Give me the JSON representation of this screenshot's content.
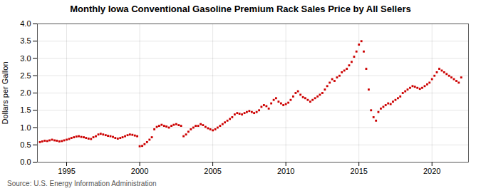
{
  "chart_data": {
    "type": "scatter",
    "title": "Monthly Iowa Conventional Gasoline Premium Rack Sales Price by All Sellers",
    "ylabel": "Dollars per Gallon",
    "source": "Source: U.S. Energy Information Administration",
    "color": "#cc0000",
    "marker": "square",
    "grid": true,
    "xlim": [
      1993.0,
      2022.5
    ],
    "ylim": [
      0.0,
      4.0
    ],
    "xticks": [
      1995,
      2000,
      2005,
      2010,
      2015,
      2020
    ],
    "yticks": [
      {
        "value": 0.0,
        "label": "0.0"
      },
      0.5,
      {
        "value": 1.0,
        "label": "1.0"
      },
      1.5,
      {
        "value": 2.0,
        "label": "2.0"
      },
      2.5,
      {
        "value": 3.0,
        "label": "3.0"
      },
      3.5,
      {
        "value": 4.0,
        "label": "4.0"
      }
    ],
    "x": [
      1993.17,
      1993.33,
      1993.5,
      1993.67,
      1993.83,
      1994.0,
      1994.17,
      1994.33,
      1994.5,
      1994.67,
      1994.83,
      1995.0,
      1995.17,
      1995.33,
      1995.5,
      1995.67,
      1995.83,
      1996.0,
      1996.17,
      1996.33,
      1996.5,
      1996.67,
      1996.83,
      1997.0,
      1997.17,
      1997.33,
      1997.5,
      1997.67,
      1997.83,
      1998.0,
      1998.17,
      1998.33,
      1998.5,
      1998.67,
      1998.83,
      1999.0,
      1999.17,
      1999.33,
      1999.5,
      1999.67,
      1999.83,
      2000.0,
      2000.17,
      2000.33,
      2000.5,
      2000.67,
      2000.83,
      2001.0,
      2001.17,
      2001.33,
      2001.5,
      2001.67,
      2001.83,
      2002.0,
      2002.17,
      2002.33,
      2002.5,
      2002.67,
      2002.83,
      2003.0,
      2003.17,
      2003.33,
      2003.5,
      2003.67,
      2003.83,
      2004.0,
      2004.17,
      2004.33,
      2004.5,
      2004.67,
      2004.83,
      2005.0,
      2005.17,
      2005.33,
      2005.5,
      2005.67,
      2005.83,
      2006.0,
      2006.17,
      2006.33,
      2006.5,
      2006.67,
      2006.83,
      2007.0,
      2007.17,
      2007.33,
      2007.5,
      2007.67,
      2007.83,
      2008.0,
      2008.17,
      2008.33,
      2008.5,
      2008.67,
      2008.83,
      2009.0,
      2009.17,
      2009.33,
      2009.5,
      2009.67,
      2009.83,
      2010.0,
      2010.17,
      2010.33,
      2010.5,
      2010.67,
      2010.83,
      2011.0,
      2011.17,
      2011.33,
      2011.5,
      2011.67,
      2011.83,
      2012.0,
      2012.17,
      2012.33,
      2012.5,
      2012.67,
      2012.83,
      2013.0,
      2013.17,
      2013.33,
      2013.5,
      2013.67,
      2013.83,
      2014.0,
      2014.17,
      2014.33,
      2014.5,
      2014.67,
      2014.83,
      2015.0,
      2015.17,
      2015.33,
      2015.5,
      2015.67,
      2015.83,
      2016.0,
      2016.17,
      2016.33,
      2016.5,
      2016.67,
      2016.83,
      2017.0,
      2017.17,
      2017.33,
      2017.5,
      2017.67,
      2017.83,
      2018.0,
      2018.17,
      2018.33,
      2018.5,
      2018.67,
      2018.83,
      2019.0,
      2019.17,
      2019.33,
      2019.5,
      2019.67,
      2019.83,
      2020.0,
      2020.17,
      2020.33,
      2020.5,
      2020.67,
      2020.83,
      2021.0,
      2021.17,
      2021.33,
      2021.5,
      2021.67,
      2021.83,
      2022.0
    ],
    "values": [
      0.58,
      0.6,
      0.62,
      0.61,
      0.63,
      0.65,
      0.63,
      0.62,
      0.6,
      0.61,
      0.63,
      0.65,
      0.67,
      0.7,
      0.72,
      0.74,
      0.75,
      0.73,
      0.72,
      0.7,
      0.68,
      0.67,
      0.72,
      0.75,
      0.8,
      0.82,
      0.8,
      0.78,
      0.76,
      0.75,
      0.73,
      0.7,
      0.68,
      0.7,
      0.72,
      0.75,
      0.78,
      0.8,
      0.79,
      0.77,
      0.75,
      0.46,
      0.47,
      0.52,
      0.58,
      0.65,
      0.72,
      0.95,
      1.02,
      1.05,
      1.08,
      1.05,
      1.03,
      1.0,
      1.05,
      1.08,
      1.1,
      1.07,
      1.05,
      0.75,
      0.8,
      0.88,
      0.95,
      1.0,
      1.05,
      1.05,
      1.1,
      1.07,
      1.02,
      0.98,
      0.95,
      0.92,
      0.95,
      1.0,
      1.05,
      1.1,
      1.15,
      1.2,
      1.25,
      1.3,
      1.38,
      1.42,
      1.4,
      1.38,
      1.42,
      1.45,
      1.48,
      1.45,
      1.42,
      1.45,
      1.5,
      1.6,
      1.65,
      1.62,
      1.55,
      1.7,
      1.8,
      1.85,
      1.75,
      1.7,
      1.65,
      1.68,
      1.72,
      1.8,
      1.9,
      2.0,
      2.05,
      1.95,
      1.88,
      1.85,
      1.8,
      1.75,
      1.8,
      1.85,
      1.9,
      1.95,
      2.0,
      2.1,
      2.2,
      2.3,
      2.4,
      2.35,
      2.45,
      2.5,
      2.6,
      2.65,
      2.7,
      2.8,
      2.9,
      3.05,
      3.2,
      3.4,
      3.5,
      3.2,
      2.7,
      2.1,
      1.5,
      1.3,
      1.2,
      1.45,
      1.55,
      1.6,
      1.65,
      1.7,
      1.68,
      1.75,
      1.8,
      1.85,
      1.9,
      2.0,
      2.05,
      2.1,
      2.15,
      2.2,
      2.18,
      2.15,
      2.12,
      2.15,
      2.2,
      2.25,
      2.3,
      2.4,
      2.5,
      2.6,
      2.7,
      2.65,
      2.6,
      2.55,
      2.5,
      2.45,
      2.4,
      2.35,
      2.3,
      2.45
    ]
  }
}
